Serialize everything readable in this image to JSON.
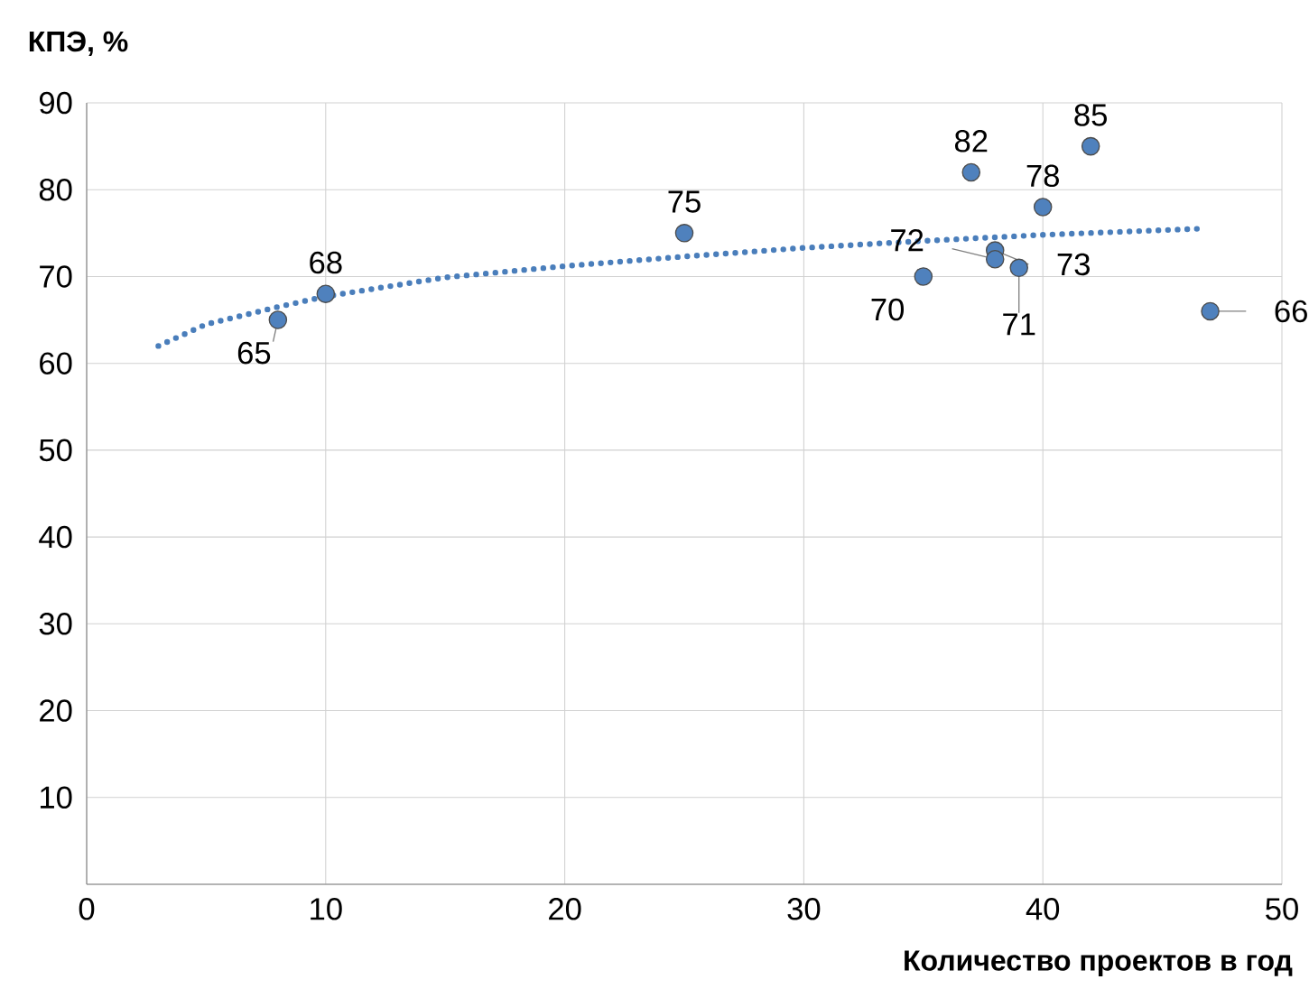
{
  "chart_data": {
    "type": "scatter",
    "xlabel": "Количество проектов в год",
    "ylabel": "КПЭ, %",
    "x": [
      8,
      10,
      25,
      35,
      37,
      38,
      38,
      39,
      40,
      42,
      47
    ],
    "values": [
      65,
      68,
      75,
      70,
      82,
      73,
      72,
      71,
      78,
      85,
      66
    ],
    "color": "#4f81bd",
    "marker": "circle",
    "value_labels": [
      "65",
      "68",
      "75",
      "70",
      "82",
      "73",
      "72",
      "71",
      "78",
      "85",
      "66"
    ],
    "series": [
      {
        "type": "line",
        "line_style": "dotted",
        "marker": "none",
        "color": "#4a7ebb",
        "x": [
          3,
          5,
          8,
          10,
          15,
          20,
          25,
          30,
          35,
          40,
          46.5
        ],
        "values": [
          62,
          64.5,
          66.5,
          67.7,
          69.9,
          71.2,
          72.3,
          73.3,
          74.1,
          74.8,
          75.5
        ]
      }
    ],
    "xlim": [
      0,
      50
    ],
    "xticks": [
      0,
      10,
      20,
      30,
      40,
      50
    ],
    "ylim": [
      0,
      90
    ],
    "yticks": [
      {
        "value": 0,
        "label": null
      },
      10,
      20,
      30,
      40,
      50,
      60,
      70,
      80,
      90
    ],
    "grid": true
  }
}
